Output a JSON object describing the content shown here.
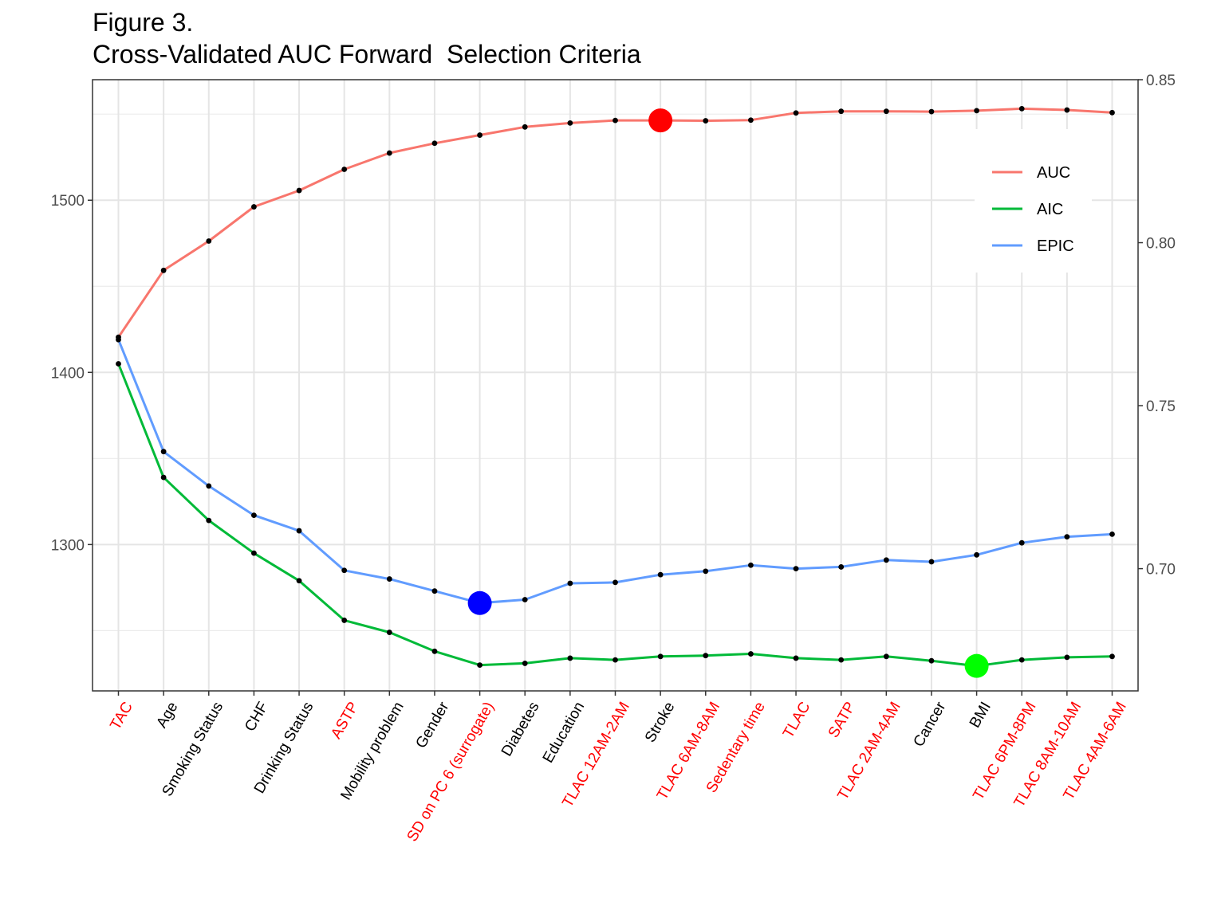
{
  "title_lines": [
    "Figure 3.",
    "Cross-Validated AUC Forward  Selection Criteria"
  ],
  "chart_data": {
    "type": "line",
    "categories": [
      "TAC",
      "Age",
      "Smoking Status",
      "CHF",
      "Drinking Status",
      "ASTP",
      "Mobility problem",
      "Gender",
      "SD on PC 6 (surrogate)",
      "Diabetes",
      "Education",
      "TLAC 12AM-2AM",
      "Stroke",
      "TLAC 6AM-8AM",
      "Sedentary time",
      "TLAC",
      "SATP",
      "TLAC 2AM-4AM",
      "Cancer",
      "BMI",
      "TLAC 6PM-8PM",
      "TLAC 8AM-10AM",
      "TLAC 4AM-6AM"
    ],
    "category_highlight": [
      true,
      false,
      false,
      false,
      false,
      true,
      false,
      false,
      true,
      false,
      false,
      true,
      false,
      true,
      true,
      true,
      true,
      true,
      false,
      false,
      true,
      true,
      true
    ],
    "category_colors": {
      "normal": "#000000",
      "highlight": "#ff0000"
    },
    "left_axis": {
      "ylim": [
        1215,
        1570
      ],
      "ticks": [
        1300,
        1400,
        1500
      ],
      "tick_labels": [
        "1300",
        "1400",
        "1500"
      ],
      "minor_ticks": [
        1250,
        1350,
        1450,
        1550
      ]
    },
    "right_axis": {
      "ylim": [
        0.6625,
        0.85
      ],
      "ticks": [
        0.7,
        0.75,
        0.8,
        0.85
      ],
      "tick_labels": [
        "0.70",
        "0.75",
        "0.80",
        "0.85"
      ],
      "minor_ticks": [
        0.675,
        0.725,
        0.775,
        0.825
      ]
    },
    "series": [
      {
        "name": "AUC",
        "axis": "right",
        "color": "#f8766d",
        "values": [
          0.771,
          0.7915,
          0.8005,
          0.811,
          0.816,
          0.8225,
          0.8275,
          0.8305,
          0.833,
          0.8355,
          0.8367,
          0.8375,
          0.8375,
          0.8374,
          0.8376,
          0.8398,
          0.8403,
          0.8403,
          0.8402,
          0.8405,
          0.8411,
          0.8407,
          0.8399
        ],
        "best_index": 12,
        "best_color": "#ff0000"
      },
      {
        "name": "AIC",
        "axis": "left",
        "color": "#00ba38",
        "values": [
          1405,
          1339,
          1314,
          1295,
          1279,
          1256,
          1249,
          1238,
          1230,
          1231,
          1234,
          1233,
          1235,
          1235.5,
          1236.5,
          1234,
          1233,
          1235,
          1232.5,
          1229.5,
          1233,
          1234.5,
          1235
        ],
        "best_index": 19,
        "best_color": "#00ff00"
      },
      {
        "name": "EPIC",
        "axis": "left",
        "color": "#619cff",
        "values": [
          1419,
          1354,
          1334,
          1317,
          1308,
          1285,
          1280,
          1273,
          1266,
          1268,
          1277.5,
          1278,
          1282.5,
          1284.5,
          1288,
          1286,
          1287,
          1291,
          1290,
          1294,
          1301,
          1304.5,
          1306
        ],
        "best_index": 8,
        "best_color": "#0000ff"
      }
    ],
    "point_color": "#000000",
    "legend": {
      "position": "top-right",
      "entries": [
        "AUC",
        "AIC",
        "EPIC"
      ]
    },
    "grid": true,
    "xlabel": "",
    "ylabel": ""
  }
}
